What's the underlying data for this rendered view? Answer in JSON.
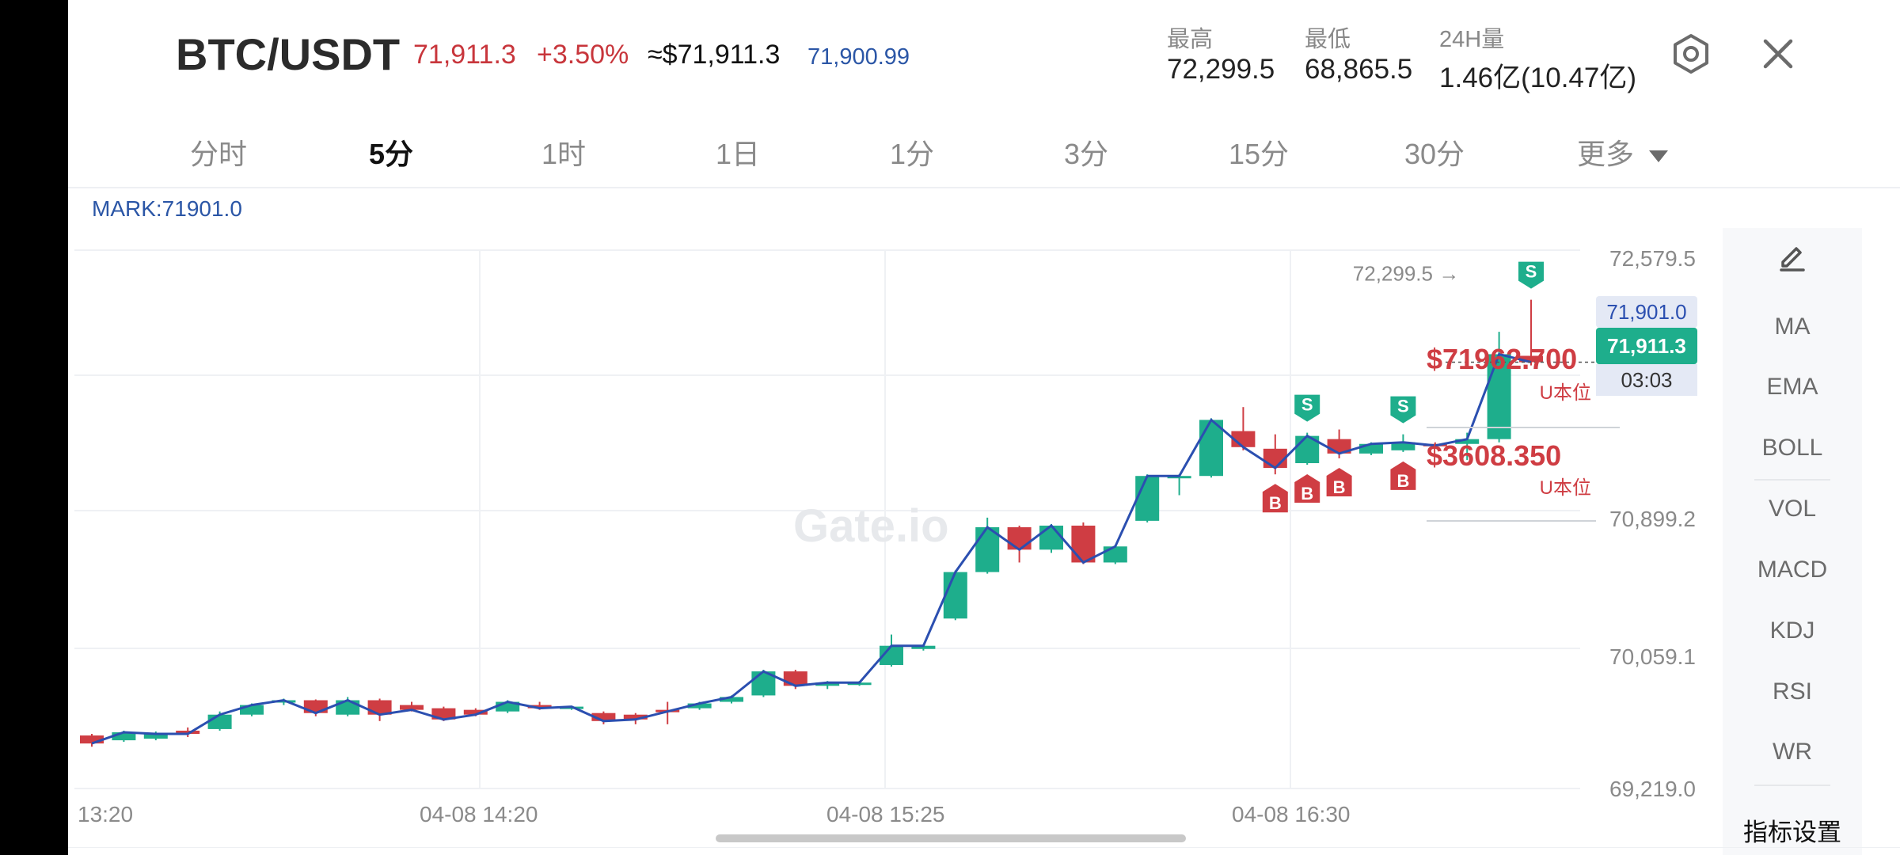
{
  "header": {
    "symbol": "BTC/USDT",
    "last_price": "71,911.3",
    "change_pct": "+3.50%",
    "usd_price": "≈$71,911.3",
    "index_price": "71,900.99",
    "high_label": "最高",
    "high_value": "72,299.5",
    "low_label": "最低",
    "low_value": "68,865.5",
    "volume_label": "24H量",
    "volume_value": "1.46亿(10.47亿)",
    "settings_icon": "hexagon-settings-icon",
    "close_icon": "close-icon"
  },
  "timeframes": [
    {
      "label": "分时",
      "active": false
    },
    {
      "label": "5分",
      "active": true
    },
    {
      "label": "1时",
      "active": false
    },
    {
      "label": "1日",
      "active": false
    },
    {
      "label": "1分",
      "active": false
    },
    {
      "label": "3分",
      "active": false
    },
    {
      "label": "15分",
      "active": false
    },
    {
      "label": "30分",
      "active": false
    }
  ],
  "more_label": "更多",
  "mark": "MARK:71901.0",
  "chart_data": {
    "type": "candlestick",
    "watermark": "Gate.io",
    "y_ticks": [
      "72,579.5",
      "70,899.2",
      "70,059.1",
      "69,219.0"
    ],
    "ylim": [
      69219.0,
      72579.5
    ],
    "x_ticks": [
      "13:20",
      "04-08 14:20",
      "04-08 15:25",
      "04-08 16:30"
    ],
    "high_marker": "72,299.5 →",
    "mark_price_label": "71,901.0",
    "current_price_label": "71,911.3",
    "countdown_label": "03:03",
    "position_1": {
      "price": "$71962.700",
      "unit": "U本位"
    },
    "position_2": {
      "price": "$3608.350",
      "unit": "U本位"
    },
    "up_color": "#1eae8c",
    "down_color": "#cf3d43",
    "ma_color": "#2b4fb0",
    "candles": [
      {
        "o": 69550,
        "c": 69500,
        "h": 69560,
        "l": 69480
      },
      {
        "o": 69520,
        "c": 69570,
        "h": 69580,
        "l": 69510
      },
      {
        "o": 69530,
        "c": 69560,
        "h": 69575,
        "l": 69520
      },
      {
        "o": 69580,
        "c": 69560,
        "h": 69600,
        "l": 69540
      },
      {
        "o": 69590,
        "c": 69680,
        "h": 69700,
        "l": 69580
      },
      {
        "o": 69680,
        "c": 69740,
        "h": 69750,
        "l": 69670
      },
      {
        "o": 69760,
        "c": 69770,
        "h": 69780,
        "l": 69740
      },
      {
        "o": 69770,
        "c": 69690,
        "h": 69775,
        "l": 69670
      },
      {
        "o": 69680,
        "c": 69770,
        "h": 69790,
        "l": 69670
      },
      {
        "o": 69770,
        "c": 69680,
        "h": 69780,
        "l": 69640
      },
      {
        "o": 69740,
        "c": 69710,
        "h": 69760,
        "l": 69700
      },
      {
        "o": 69720,
        "c": 69650,
        "h": 69730,
        "l": 69640
      },
      {
        "o": 69710,
        "c": 69680,
        "h": 69720,
        "l": 69670
      },
      {
        "o": 69700,
        "c": 69760,
        "h": 69770,
        "l": 69690
      },
      {
        "o": 69740,
        "c": 69720,
        "h": 69760,
        "l": 69710
      },
      {
        "o": 69720,
        "c": 69730,
        "h": 69735,
        "l": 69710
      },
      {
        "o": 69690,
        "c": 69640,
        "h": 69700,
        "l": 69620
      },
      {
        "o": 69680,
        "c": 69650,
        "h": 69690,
        "l": 69620
      },
      {
        "o": 69710,
        "c": 69700,
        "h": 69760,
        "l": 69620
      },
      {
        "o": 69720,
        "c": 69750,
        "h": 69760,
        "l": 69710
      },
      {
        "o": 69760,
        "c": 69790,
        "h": 69800,
        "l": 69750
      },
      {
        "o": 69800,
        "c": 69950,
        "h": 69960,
        "l": 69790
      },
      {
        "o": 69950,
        "c": 69860,
        "h": 69960,
        "l": 69840
      },
      {
        "o": 69860,
        "c": 69880,
        "h": 69890,
        "l": 69840
      },
      {
        "o": 69880,
        "c": 69880,
        "h": 69890,
        "l": 69860
      },
      {
        "o": 69990,
        "c": 70110,
        "h": 70180,
        "l": 69980
      },
      {
        "o": 70090,
        "c": 70110,
        "h": 70120,
        "l": 70080
      },
      {
        "o": 70280,
        "c": 70570,
        "h": 70580,
        "l": 70270
      },
      {
        "o": 70570,
        "c": 70850,
        "h": 70910,
        "l": 70560
      },
      {
        "o": 70850,
        "c": 70710,
        "h": 70860,
        "l": 70630
      },
      {
        "o": 70710,
        "c": 70860,
        "h": 70870,
        "l": 70690
      },
      {
        "o": 70860,
        "c": 70630,
        "h": 70880,
        "l": 70620
      },
      {
        "o": 70630,
        "c": 70730,
        "h": 70740,
        "l": 70620
      },
      {
        "o": 70890,
        "c": 71170,
        "h": 71180,
        "l": 70880
      },
      {
        "o": 71160,
        "c": 71170,
        "h": 71180,
        "l": 71050
      },
      {
        "o": 71170,
        "c": 71520,
        "h": 71530,
        "l": 71160
      },
      {
        "o": 71450,
        "c": 71350,
        "h": 71600,
        "l": 71330
      },
      {
        "o": 71340,
        "c": 71220,
        "h": 71430,
        "l": 71180
      },
      {
        "o": 71250,
        "c": 71420,
        "h": 71440,
        "l": 71240
      },
      {
        "o": 71400,
        "c": 71310,
        "h": 71460,
        "l": 71280
      },
      {
        "o": 71310,
        "c": 71370,
        "h": 71380,
        "l": 71300
      },
      {
        "o": 71330,
        "c": 71380,
        "h": 71430,
        "l": 71320
      },
      {
        "o": 71370,
        "c": 71360,
        "h": 71380,
        "l": 71340
      },
      {
        "o": 71370,
        "c": 71400,
        "h": 71440,
        "l": 71270
      },
      {
        "o": 71400,
        "c": 71930,
        "h": 72070,
        "l": 71380
      },
      {
        "o": 71920,
        "c": 71880,
        "h": 72270,
        "l": 71860
      }
    ],
    "trades": [
      {
        "i": 38,
        "type": "S",
        "side": "above"
      },
      {
        "i": 37,
        "type": "B",
        "side": "below"
      },
      {
        "i": 38,
        "type": "B",
        "side": "below"
      },
      {
        "i": 39,
        "type": "B",
        "side": "below"
      },
      {
        "i": 41,
        "type": "S",
        "side": "above"
      },
      {
        "i": 41,
        "type": "B",
        "side": "below"
      },
      {
        "i": 45,
        "type": "S",
        "side": "above"
      }
    ]
  },
  "indicators": {
    "pencil_icon": "pencil-icon",
    "items": [
      "MA",
      "EMA",
      "BOLL",
      "VOL",
      "MACD",
      "KDJ",
      "RSI",
      "WR"
    ],
    "settings": "指标设置"
  }
}
